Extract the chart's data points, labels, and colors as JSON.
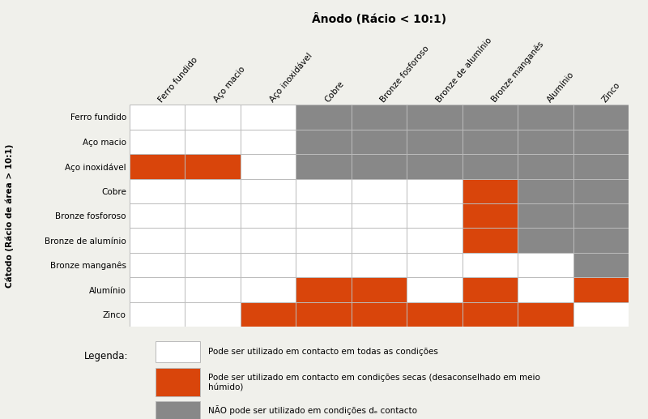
{
  "title": "Ânodo (Rácio < 10:1)",
  "ylabel": "Cátodo (Rácio de área > 10:1)",
  "col_labels": [
    "Ferro fundido",
    "Aço macio",
    "Aço inoxidável",
    "Cobre",
    "Bronze fosforoso",
    "Bronze de alumínio",
    "Bronze manganês",
    "Alumínio",
    "Zinco"
  ],
  "row_labels": [
    "Ferro fundido",
    "Aço macio",
    "Aço inoxidável",
    "Cobre",
    "Bronze fosforoso",
    "Bronze de alumínio",
    "Bronze manganês",
    "Alumínio",
    "Zinco"
  ],
  "matrix": [
    [
      0,
      0,
      0,
      2,
      2,
      2,
      2,
      2,
      2
    ],
    [
      0,
      0,
      0,
      2,
      2,
      2,
      2,
      2,
      2
    ],
    [
      1,
      1,
      0,
      2,
      2,
      2,
      2,
      2,
      2
    ],
    [
      0,
      0,
      0,
      0,
      0,
      0,
      1,
      2,
      2
    ],
    [
      0,
      0,
      0,
      0,
      0,
      0,
      1,
      2,
      2
    ],
    [
      0,
      0,
      0,
      0,
      0,
      0,
      1,
      2,
      2
    ],
    [
      0,
      0,
      0,
      0,
      0,
      0,
      0,
      0,
      2
    ],
    [
      0,
      0,
      0,
      1,
      1,
      0,
      1,
      0,
      1
    ],
    [
      0,
      0,
      1,
      1,
      1,
      1,
      1,
      1,
      0
    ]
  ],
  "color_white": "#ffffff",
  "color_orange": "#d9450b",
  "color_gray": "#888888",
  "legend_entries": [
    {
      "color": "#ffffff",
      "text": "Pode ser utilizado em contacto em todas as condições"
    },
    {
      "color": "#d9450b",
      "text": "Pode ser utilizado em contacto em condições secas (desaconselhado em meio\nhúmido)"
    },
    {
      "color": "#888888",
      "text": "NÃO pode ser utilizado em condições dₑ contacto"
    }
  ],
  "background_color": "#f0f0eb",
  "grid_color": "#bbbbbb",
  "title_fontsize": 10,
  "col_label_fontsize": 7.5,
  "row_label_fontsize": 7.5,
  "legend_fontsize": 7.5,
  "legend_title_fontsize": 8.5
}
